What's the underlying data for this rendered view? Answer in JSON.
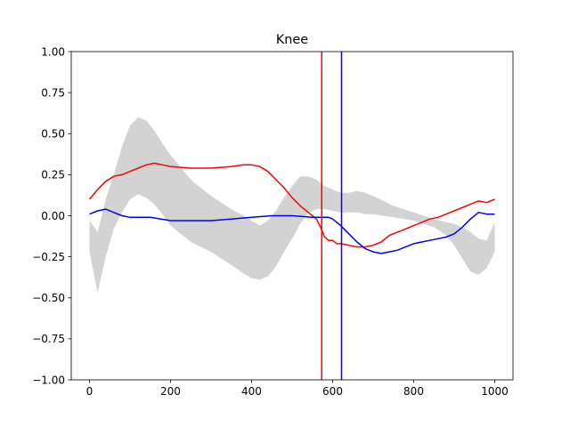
{
  "chart_data": {
    "type": "line",
    "title": "Knee",
    "xlabel": "",
    "ylabel": "",
    "xlim": [
      -45,
      1045
    ],
    "ylim": [
      -1.0,
      1.0
    ],
    "x_ticks": [
      0,
      200,
      400,
      600,
      800,
      1000
    ],
    "x_tick_labels": [
      "0",
      "200",
      "400",
      "600",
      "800",
      "1000"
    ],
    "y_ticks": [
      1.0,
      0.75,
      0.5,
      0.25,
      0.0,
      -0.25,
      -0.5,
      -0.75,
      -1.0
    ],
    "y_tick_labels": [
      "1.00",
      "0.75",
      "0.50",
      "0.25",
      "0.00",
      "−0.25",
      "−0.50",
      "−0.75",
      "−1.00"
    ],
    "grid": false,
    "band": {
      "color": "#d3d3d3",
      "x": [
        0,
        20,
        40,
        60,
        80,
        100,
        120,
        140,
        160,
        180,
        200,
        250,
        300,
        350,
        380,
        400,
        420,
        440,
        460,
        480,
        500,
        520,
        540,
        560,
        580,
        600,
        620,
        640,
        660,
        680,
        700,
        750,
        800,
        850,
        880,
        900,
        920,
        940,
        960,
        980,
        1000
      ],
      "upper": [
        -0.03,
        -0.1,
        0.1,
        0.25,
        0.42,
        0.55,
        0.6,
        0.58,
        0.52,
        0.44,
        0.37,
        0.22,
        0.12,
        0.04,
        0.0,
        -0.03,
        -0.06,
        -0.03,
        0.03,
        0.11,
        0.18,
        0.24,
        0.24,
        0.22,
        0.18,
        0.16,
        0.14,
        0.14,
        0.15,
        0.14,
        0.12,
        0.06,
        0.02,
        -0.02,
        -0.04,
        -0.05,
        -0.07,
        -0.1,
        -0.14,
        -0.15,
        -0.04
      ],
      "lower": [
        -0.22,
        -0.47,
        -0.25,
        -0.08,
        0.02,
        0.1,
        0.13,
        0.11,
        0.07,
        0.01,
        -0.06,
        -0.16,
        -0.22,
        -0.3,
        -0.35,
        -0.38,
        -0.39,
        -0.37,
        -0.31,
        -0.22,
        -0.14,
        -0.05,
        0.02,
        0.04,
        0.04,
        0.03,
        0.02,
        0.02,
        0.02,
        0.01,
        0.01,
        -0.01,
        -0.03,
        -0.07,
        -0.12,
        -0.18,
        -0.26,
        -0.34,
        -0.36,
        -0.32,
        -0.22
      ]
    },
    "series": [
      {
        "color": "#ff0000",
        "x": [
          0,
          20,
          40,
          60,
          80,
          100,
          120,
          140,
          160,
          180,
          200,
          250,
          300,
          350,
          380,
          400,
          420,
          440,
          460,
          480,
          500,
          520,
          540,
          560,
          570,
          580,
          590,
          600,
          610,
          620,
          640,
          660,
          680,
          700,
          720,
          740,
          760,
          780,
          800,
          820,
          840,
          860,
          880,
          900,
          920,
          940,
          960,
          980,
          1000
        ],
        "y": [
          0.1,
          0.16,
          0.21,
          0.24,
          0.25,
          0.27,
          0.29,
          0.31,
          0.32,
          0.31,
          0.3,
          0.29,
          0.29,
          0.3,
          0.31,
          0.31,
          0.3,
          0.27,
          0.22,
          0.17,
          0.11,
          0.06,
          0.02,
          -0.02,
          -0.07,
          -0.13,
          -0.15,
          -0.15,
          -0.17,
          -0.17,
          -0.18,
          -0.19,
          -0.19,
          -0.18,
          -0.16,
          -0.12,
          -0.1,
          -0.08,
          -0.06,
          -0.04,
          -0.02,
          -0.01,
          0.01,
          0.03,
          0.05,
          0.07,
          0.09,
          0.08,
          0.1
        ]
      },
      {
        "color": "#0000ff",
        "x": [
          0,
          20,
          40,
          60,
          80,
          100,
          150,
          200,
          250,
          300,
          350,
          400,
          450,
          500,
          550,
          570,
          590,
          600,
          620,
          640,
          660,
          680,
          700,
          720,
          740,
          760,
          780,
          800,
          820,
          840,
          860,
          880,
          900,
          920,
          940,
          960,
          980,
          1000
        ],
        "y": [
          0.01,
          0.03,
          0.04,
          0.02,
          0.0,
          -0.01,
          -0.01,
          -0.03,
          -0.03,
          -0.03,
          -0.02,
          -0.01,
          0.0,
          0.0,
          -0.01,
          -0.01,
          -0.01,
          -0.02,
          -0.06,
          -0.11,
          -0.16,
          -0.2,
          -0.22,
          -0.23,
          -0.22,
          -0.21,
          -0.19,
          -0.17,
          -0.16,
          -0.15,
          -0.14,
          -0.13,
          -0.11,
          -0.07,
          -0.02,
          0.02,
          0.01,
          0.01
        ]
      }
    ],
    "vlines": [
      {
        "x": 573,
        "color": "#ff0000"
      },
      {
        "x": 622,
        "color": "#0000ff"
      }
    ]
  }
}
